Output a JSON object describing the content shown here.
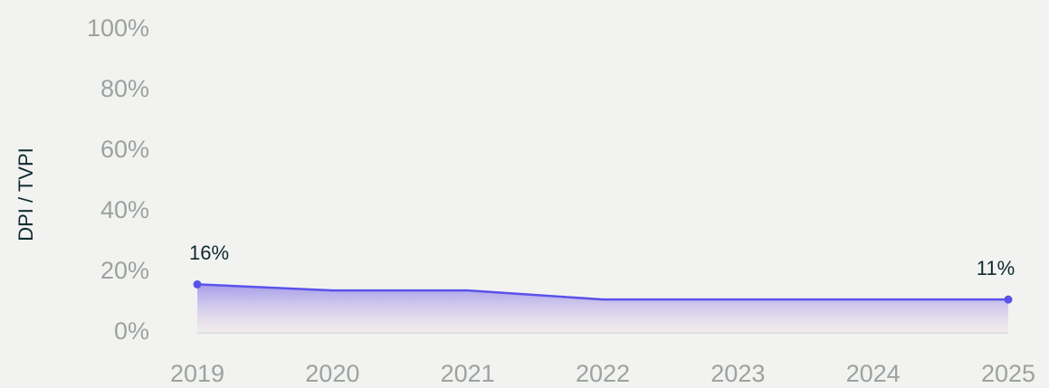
{
  "chart_data": {
    "type": "area",
    "y_label": "DPI / TVPI",
    "categories": [
      "2019",
      "2020",
      "2021",
      "2022",
      "2023",
      "2024",
      "2025"
    ],
    "values": [
      16,
      14,
      14,
      11,
      11,
      11,
      11
    ],
    "value_labels": [
      "16%",
      null,
      null,
      null,
      null,
      null,
      "11%"
    ],
    "color": "#5b52ea",
    "ylim": [
      0,
      100
    ],
    "yticks": [
      {
        "value": 0,
        "label": "0%"
      },
      {
        "value": 20,
        "label": "20%"
      },
      {
        "value": 40,
        "label": "40%"
      },
      {
        "value": 60,
        "label": "60%"
      },
      {
        "value": 80,
        "label": "80%"
      },
      {
        "value": 100,
        "label": "100%"
      }
    ]
  }
}
